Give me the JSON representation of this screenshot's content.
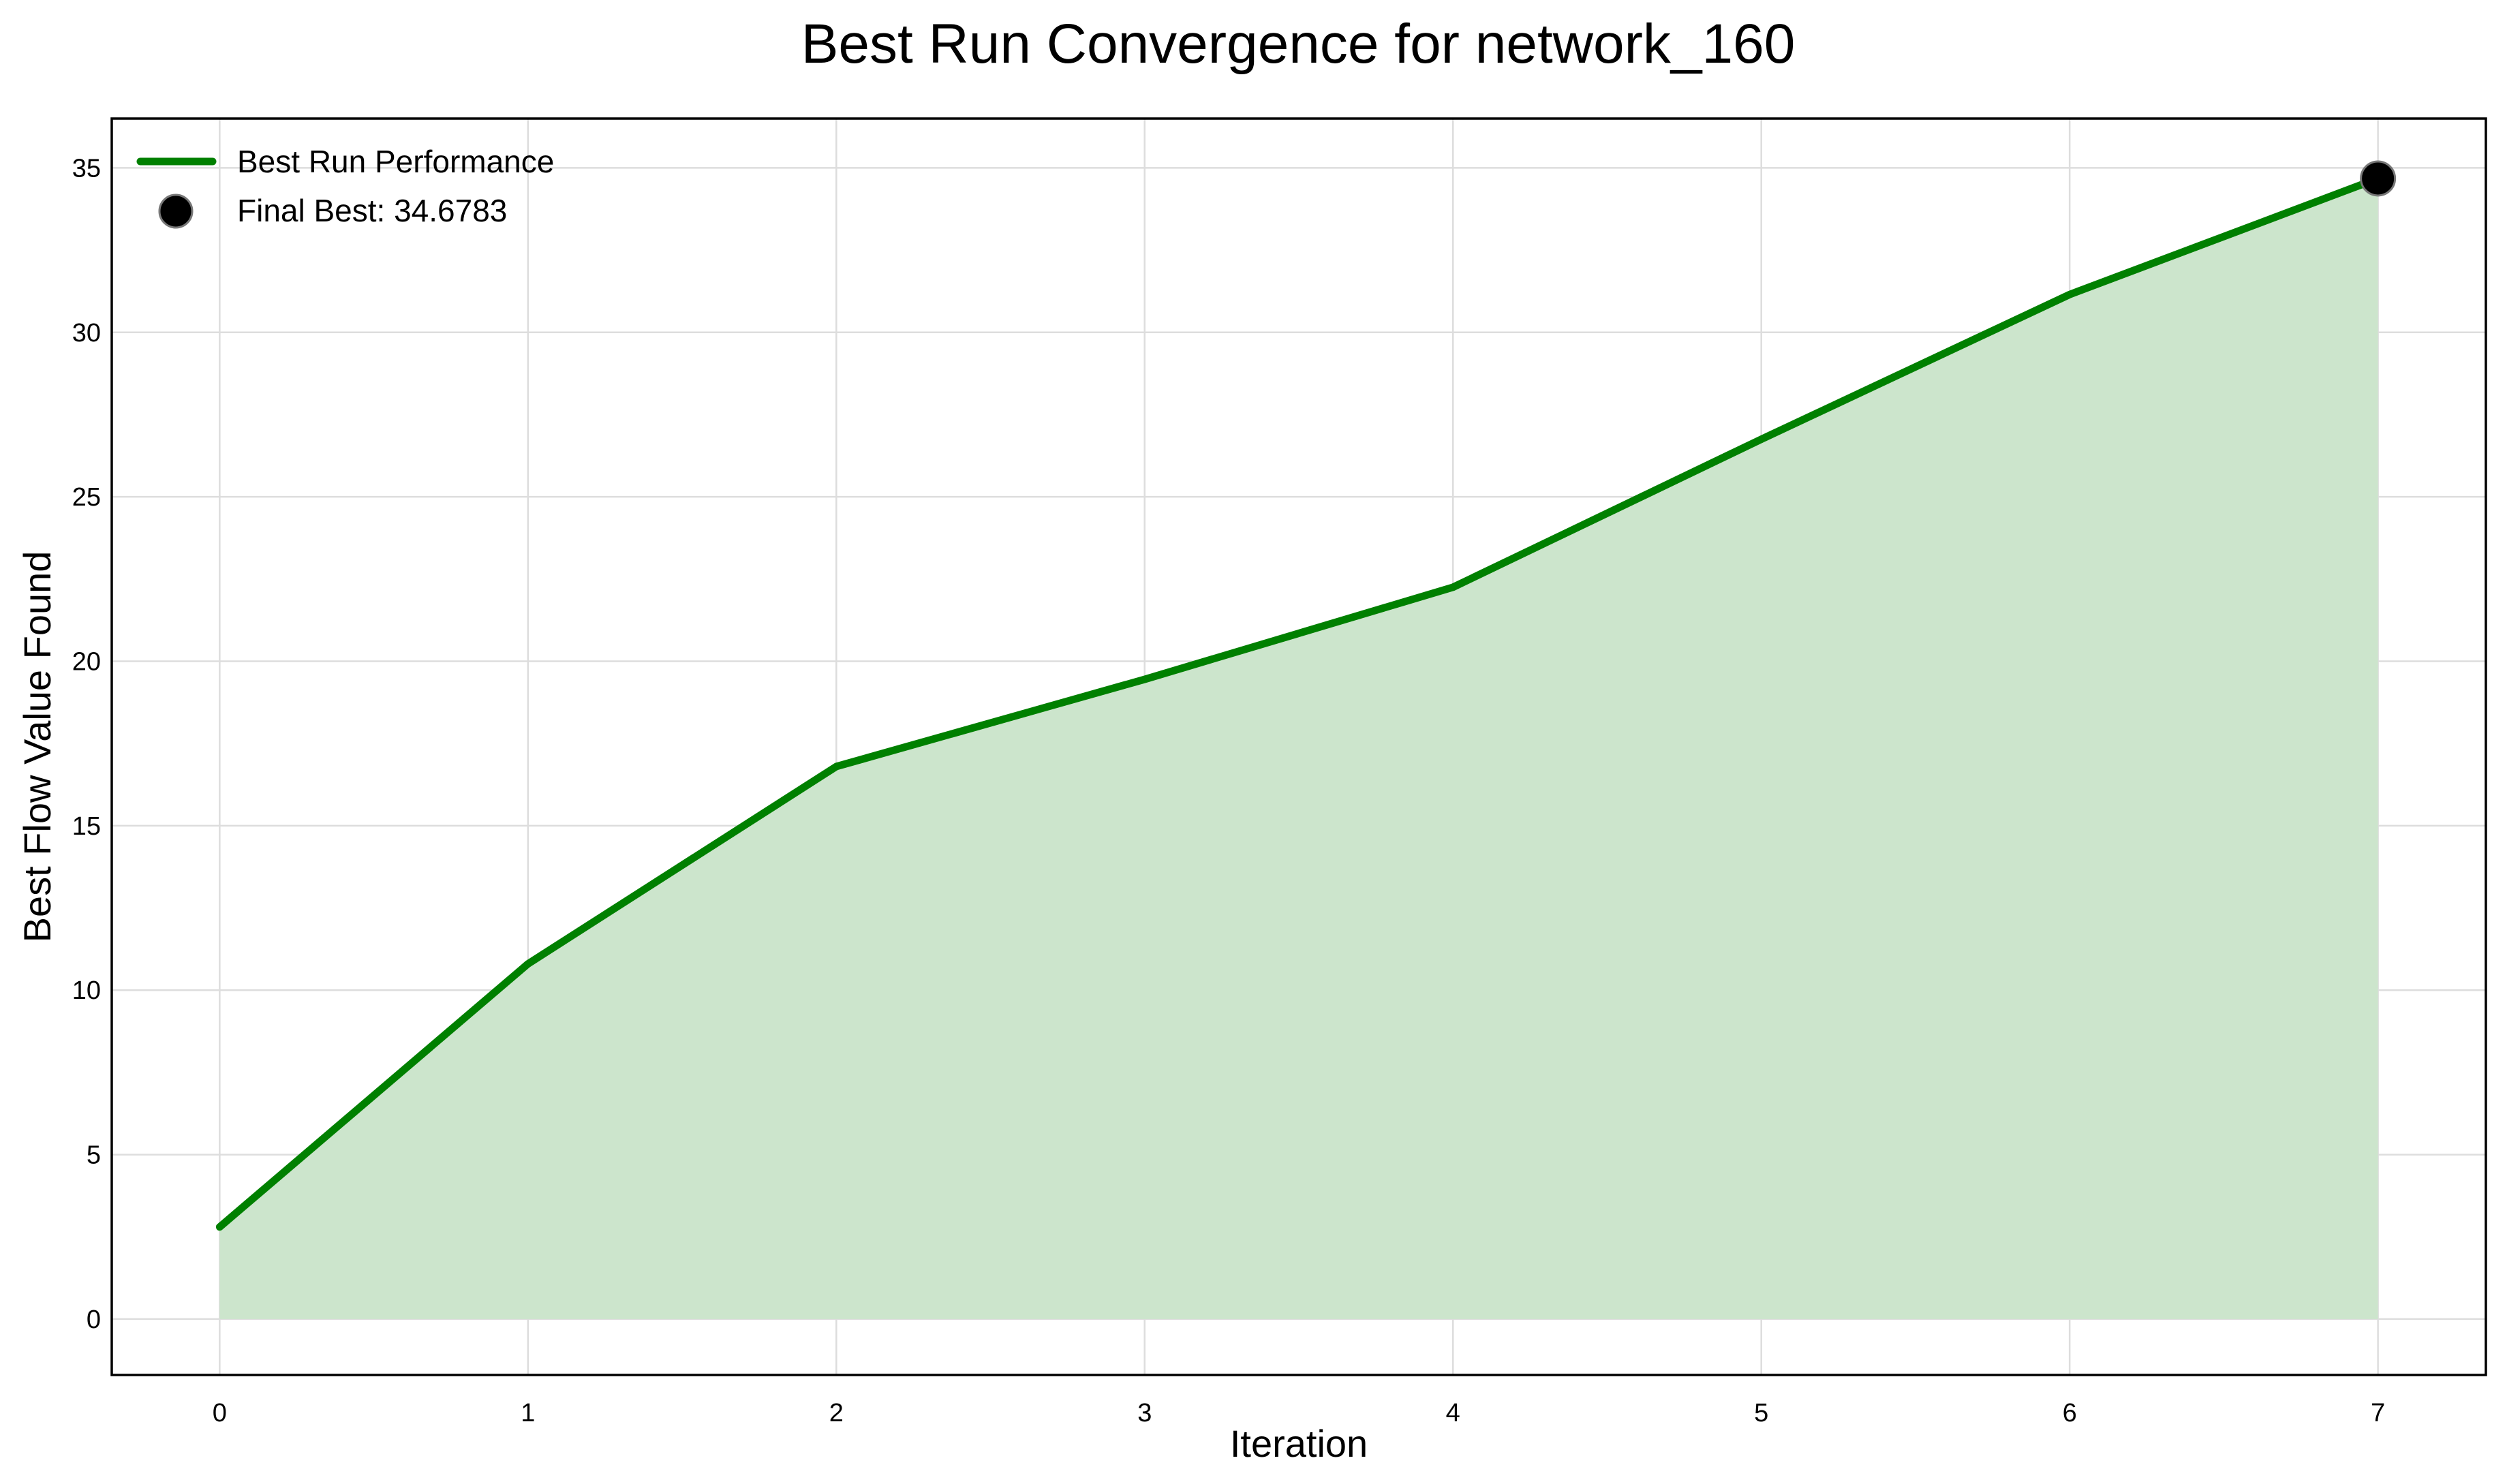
{
  "chart_data": {
    "type": "area",
    "title": "Best Run Convergence for network_160",
    "xlabel": "Iteration",
    "ylabel": "Best Flow Value Found",
    "x": [
      0,
      1,
      2,
      3,
      4,
      5,
      6,
      7
    ],
    "series": [
      {
        "name": "Best Run Performance",
        "values": [
          2.8,
          10.8,
          16.8,
          19.45,
          22.25,
          26.75,
          31.15,
          34.6783
        ],
        "color": "#008000",
        "fill_color": "#cce5cc"
      }
    ],
    "highlight_point": {
      "label": "Final Best: 34.6783",
      "x": 7,
      "y": 34.6783,
      "color": "#000000"
    },
    "xlim": [
      -0.35,
      7.35
    ],
    "ylim": [
      -1.7,
      36.5
    ],
    "x_ticks": [
      0,
      1,
      2,
      3,
      4,
      5,
      6,
      7
    ],
    "y_ticks": [
      0,
      5,
      10,
      15,
      20,
      25,
      30,
      35
    ],
    "grid": true,
    "legend_position": "top-left"
  }
}
